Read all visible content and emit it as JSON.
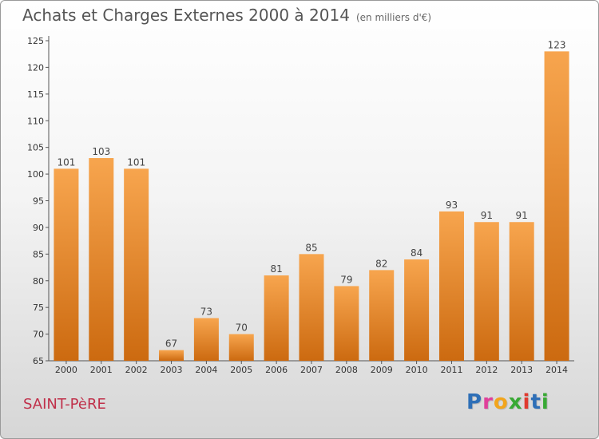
{
  "chart_data": {
    "type": "bar",
    "title": "Achats et Charges Externes 2000 à 2014",
    "subtitle": "(en milliers d'€)",
    "categories": [
      "2000",
      "2001",
      "2002",
      "2003",
      "2004",
      "2005",
      "2006",
      "2007",
      "2008",
      "2009",
      "2010",
      "2011",
      "2012",
      "2013",
      "2014"
    ],
    "values": [
      101,
      103,
      101,
      67,
      73,
      70,
      81,
      85,
      79,
      82,
      84,
      93,
      91,
      91,
      123
    ],
    "ylim": [
      65,
      125
    ],
    "yticks": [
      65,
      70,
      75,
      80,
      85,
      90,
      95,
      100,
      105,
      110,
      115,
      120,
      125
    ],
    "grid": false,
    "legend": "none",
    "bar_color_top": "#f7a54e",
    "bar_color_bottom": "#cc6a10"
  },
  "footer": {
    "commune": "SAINT-PèRE",
    "logo_letters": [
      {
        "char": "P",
        "color": "#2e6fb7"
      },
      {
        "char": "r",
        "color": "#e0409a"
      },
      {
        "char": "o",
        "color": "#f2a51c"
      },
      {
        "char": "x",
        "color": "#39a935"
      },
      {
        "char": "i",
        "color": "#e03a2f"
      },
      {
        "char": "t",
        "color": "#2e6fb7"
      },
      {
        "char": "i",
        "color": "#39a935"
      }
    ]
  }
}
